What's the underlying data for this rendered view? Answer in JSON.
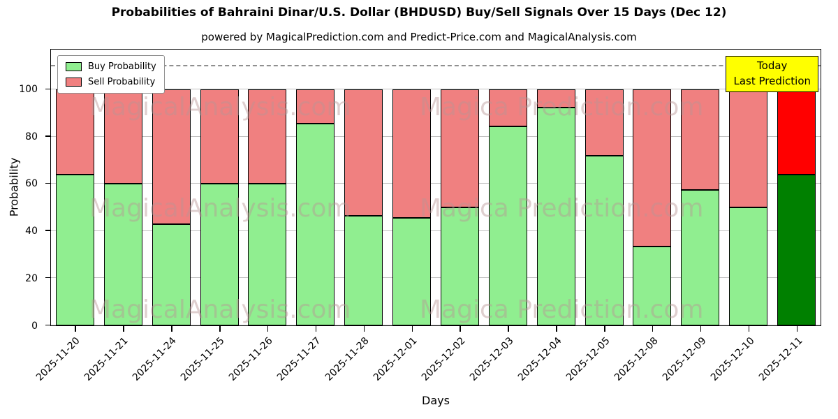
{
  "chart": {
    "title": "Probabilities of Bahraini Dinar/U.S. Dollar (BHDUSD) Buy/Sell Signals Over 15 Days (Dec 12)",
    "subtitle": "powered by MagicalPrediction.com and Predict-Price.com and MagicalAnalysis.com",
    "ylabel": "Probability",
    "xlabel": "Days",
    "today_box": {
      "line1": "Today",
      "line2": "Last Prediction"
    }
  },
  "chart_data": {
    "type": "bar",
    "stacked": true,
    "categories": [
      "2025-11-20",
      "2025-11-21",
      "2025-11-24",
      "2025-11-25",
      "2025-11-26",
      "2025-11-27",
      "2025-11-28",
      "2025-12-01",
      "2025-12-02",
      "2025-12-03",
      "2025-12-04",
      "2025-12-05",
      "2025-12-08",
      "2025-12-09",
      "2025-12-10",
      "2025-12-11"
    ],
    "series": [
      {
        "name": "Buy Probability",
        "values": [
          64,
          60,
          43,
          60,
          60,
          85.5,
          46.5,
          45.5,
          50,
          84.5,
          92.5,
          72,
          33.5,
          57.5,
          50,
          64
        ]
      },
      {
        "name": "Sell Probability",
        "values": [
          36,
          40,
          57,
          40,
          40,
          14.5,
          53.5,
          54.5,
          50,
          15.5,
          7.5,
          28,
          66.5,
          42.5,
          50,
          36
        ]
      }
    ],
    "yticks": [
      0,
      20,
      40,
      60,
      80,
      100
    ],
    "ylim": [
      0,
      117
    ],
    "dashed_line_y": 110,
    "grid": "horizontal",
    "legend_position": "upper left",
    "colors": {
      "buy": "#90ee90",
      "sell": "#f08080",
      "today_buy": "#008000",
      "today_sell": "#ff0000",
      "today_box_bg": "#ffff00"
    },
    "watermark": {
      "left_text": "MagicalAnalysis.com",
      "right_text": "Magica Prediction.com",
      "rows": 3
    }
  }
}
